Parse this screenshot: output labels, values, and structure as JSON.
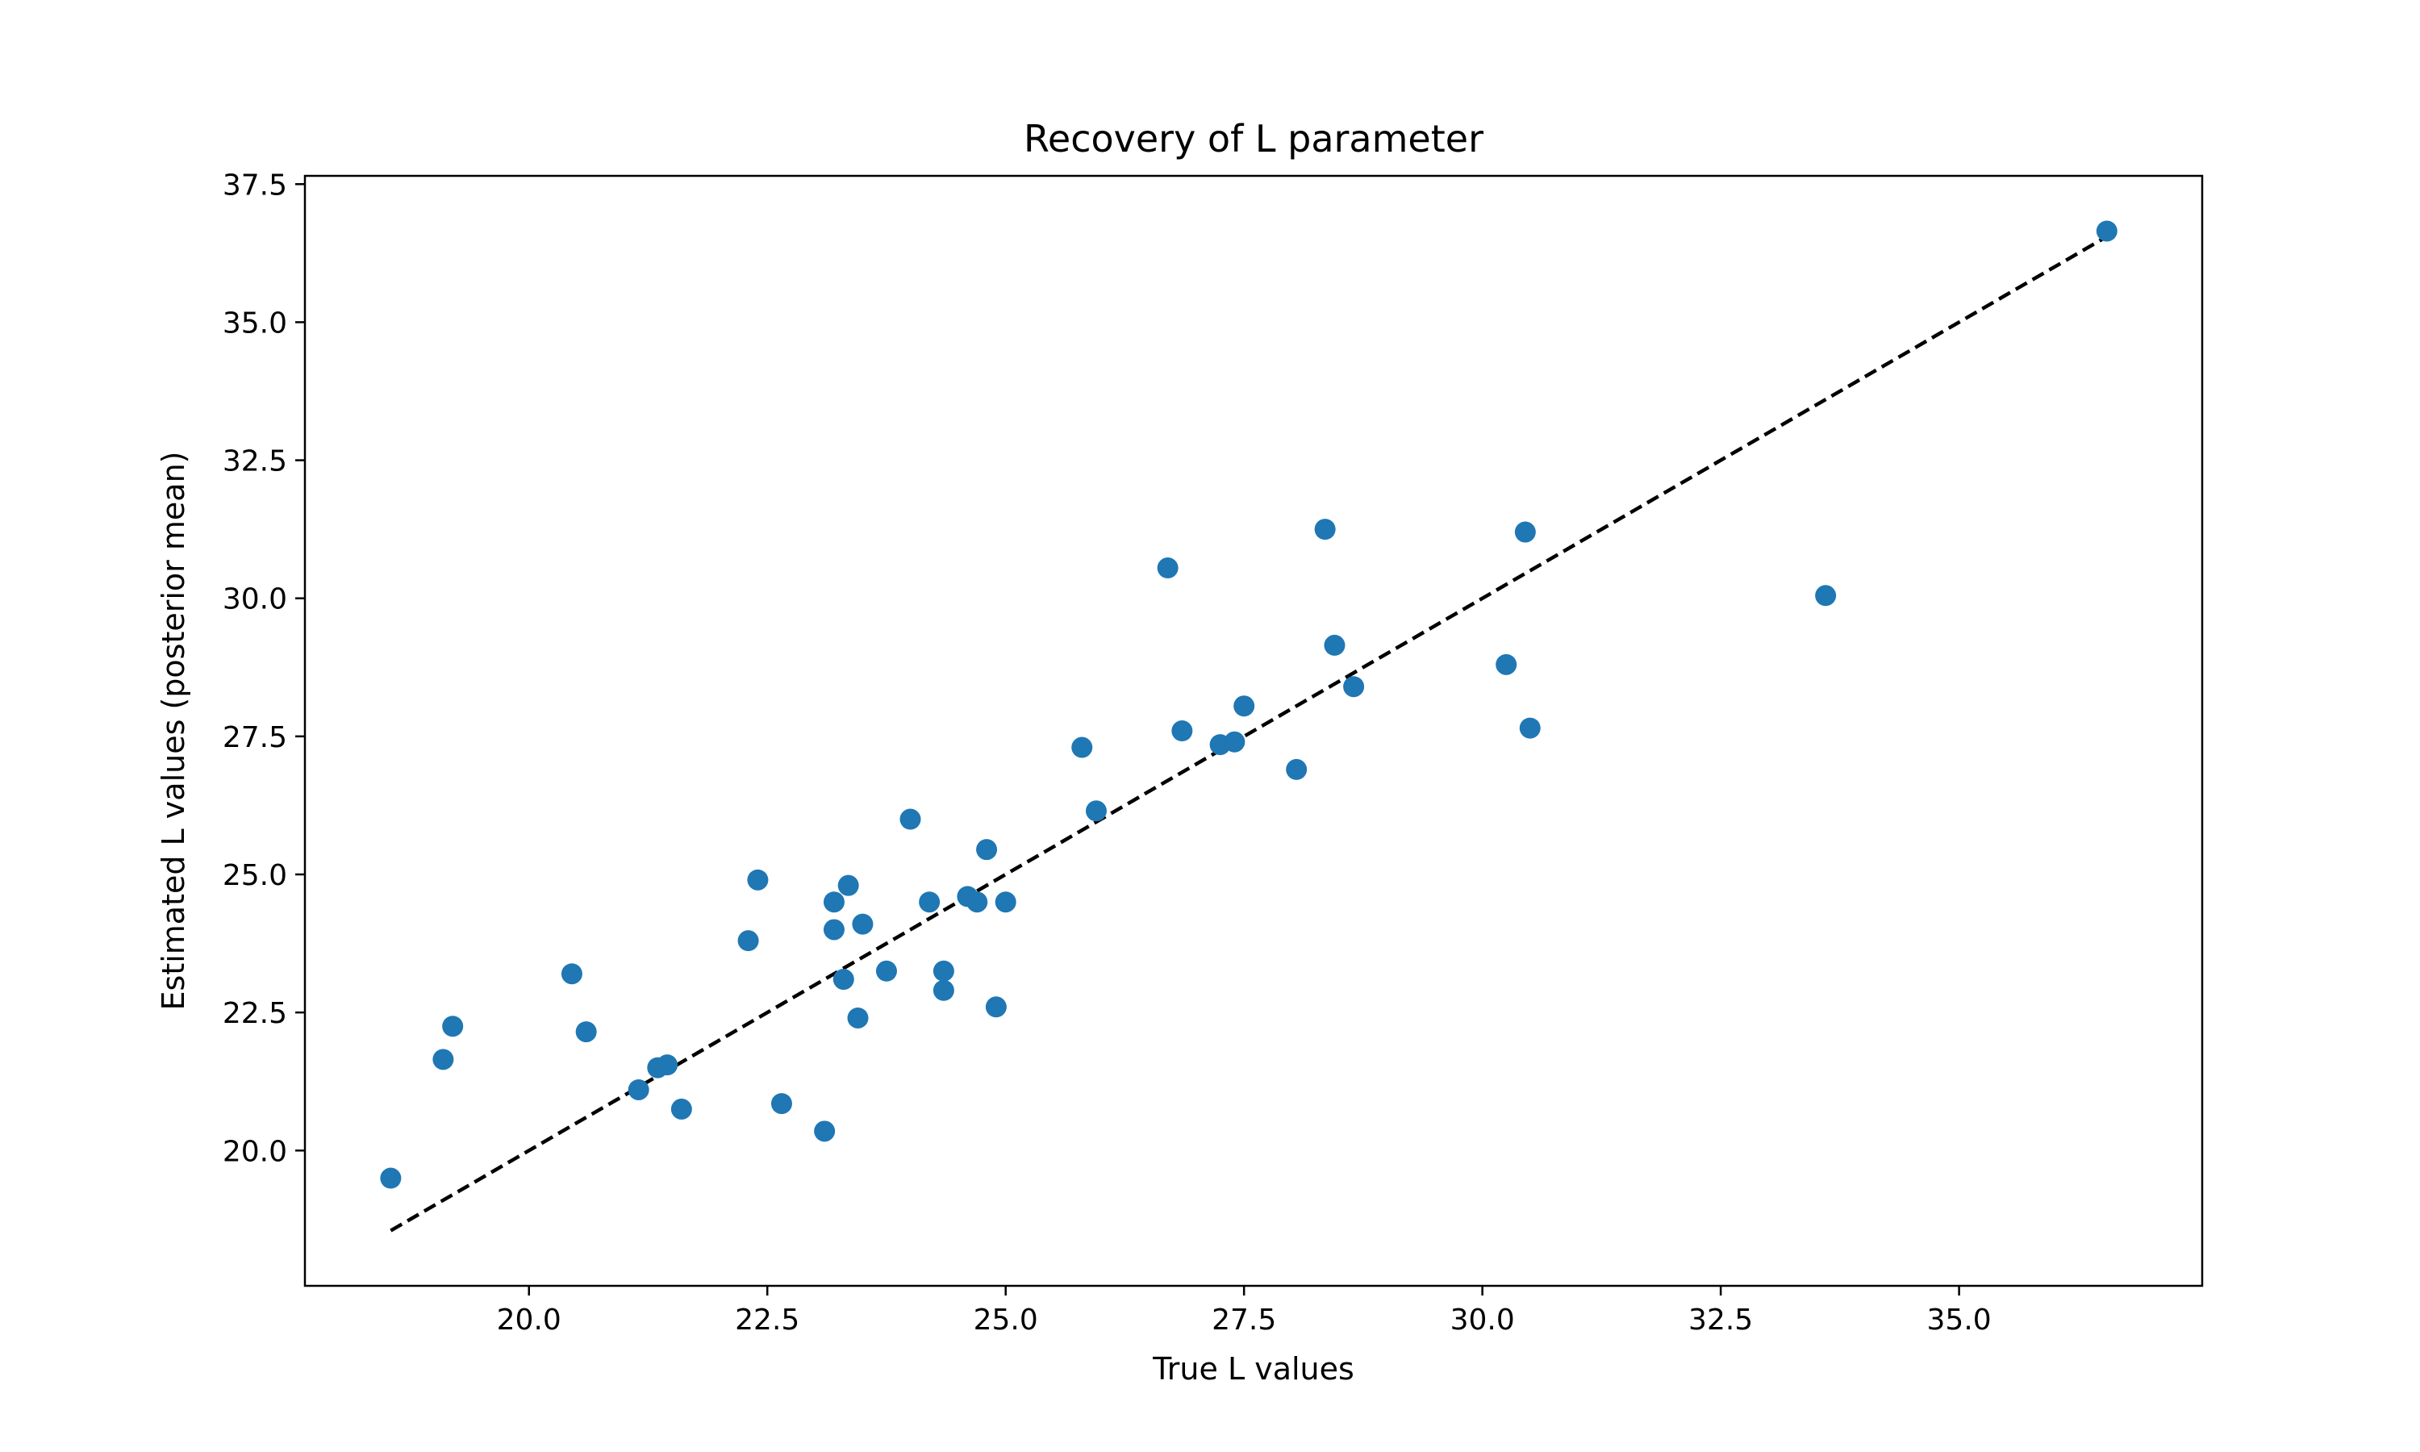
{
  "chart_data": {
    "type": "scatter",
    "title": "Recovery of L parameter",
    "xlabel": "True L values",
    "ylabel": "Estimated L values (posterior mean)",
    "xlim": [
      17.65,
      37.55
    ],
    "ylim": [
      17.55,
      37.65
    ],
    "xticks": [
      20.0,
      22.5,
      25.0,
      27.5,
      30.0,
      32.5,
      35.0
    ],
    "yticks": [
      20.0,
      22.5,
      25.0,
      27.5,
      30.0,
      32.5,
      35.0,
      37.5
    ],
    "tick_labels_x": [
      "20.0",
      "22.5",
      "25.0",
      "27.5",
      "30.0",
      "32.5",
      "35.0"
    ],
    "tick_labels_y": [
      "20.0",
      "22.5",
      "25.0",
      "27.5",
      "30.0",
      "32.5",
      "35.0",
      "37.5"
    ],
    "grid": false,
    "marker_color": "#1f77b4",
    "reference_line": {
      "style": "dashed",
      "color": "#000000",
      "from": [
        18.55,
        18.55
      ],
      "to": [
        36.55,
        36.55
      ]
    },
    "points": [
      [
        18.55,
        19.5
      ],
      [
        19.1,
        21.65
      ],
      [
        19.2,
        22.25
      ],
      [
        20.45,
        23.2
      ],
      [
        20.6,
        22.15
      ],
      [
        21.15,
        21.1
      ],
      [
        21.35,
        21.5
      ],
      [
        21.45,
        21.55
      ],
      [
        21.6,
        20.75
      ],
      [
        22.3,
        23.8
      ],
      [
        22.4,
        24.9
      ],
      [
        22.65,
        20.85
      ],
      [
        23.1,
        20.35
      ],
      [
        23.2,
        24.0
      ],
      [
        23.2,
        24.5
      ],
      [
        23.3,
        23.1
      ],
      [
        23.35,
        24.8
      ],
      [
        23.45,
        22.4
      ],
      [
        23.5,
        24.1
      ],
      [
        23.75,
        23.25
      ],
      [
        24.0,
        26.0
      ],
      [
        24.2,
        24.5
      ],
      [
        24.35,
        22.9
      ],
      [
        24.35,
        23.25
      ],
      [
        24.6,
        24.6
      ],
      [
        24.7,
        24.5
      ],
      [
        24.8,
        25.45
      ],
      [
        24.9,
        22.6
      ],
      [
        25.0,
        24.5
      ],
      [
        25.8,
        27.3
      ],
      [
        25.95,
        26.15
      ],
      [
        26.7,
        30.55
      ],
      [
        26.85,
        27.6
      ],
      [
        27.25,
        27.35
      ],
      [
        27.4,
        27.4
      ],
      [
        27.5,
        28.05
      ],
      [
        28.05,
        26.9
      ],
      [
        28.35,
        31.25
      ],
      [
        28.45,
        29.15
      ],
      [
        28.65,
        28.4
      ],
      [
        30.25,
        28.8
      ],
      [
        30.45,
        31.2
      ],
      [
        30.5,
        27.65
      ],
      [
        33.6,
        30.05
      ],
      [
        36.55,
        36.65
      ]
    ]
  }
}
